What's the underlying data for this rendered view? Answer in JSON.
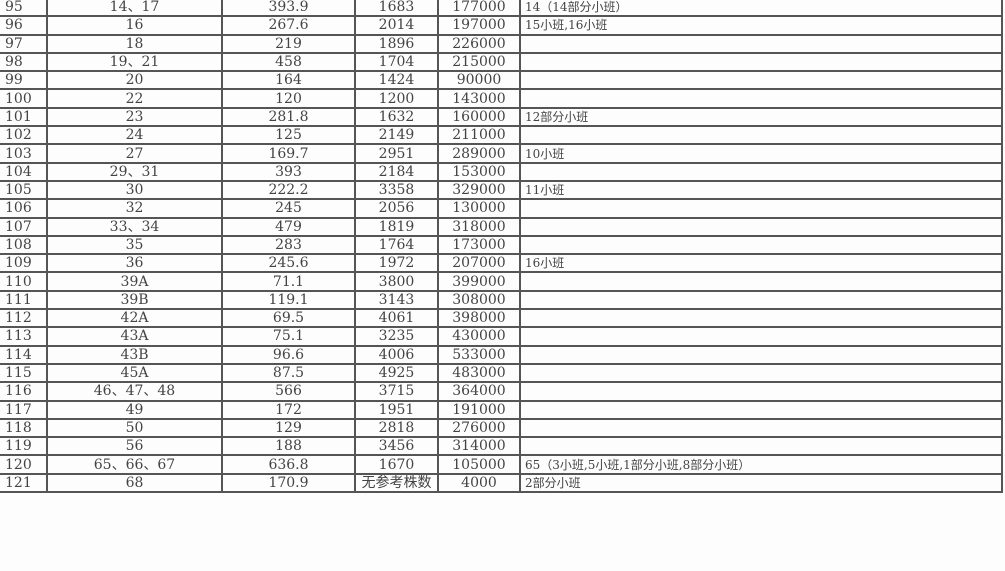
{
  "rows": [
    {
      "no": "95",
      "plots": "14、17",
      "area": "393.9",
      "count": "1683",
      "amount": "177000",
      "note": "14（14部分小班）"
    },
    {
      "no": "96",
      "plots": "16",
      "area": "267.6",
      "count": "2014",
      "amount": "197000",
      "note": "15小班,16小班"
    },
    {
      "no": "97",
      "plots": "18",
      "area": "219",
      "count": "1896",
      "amount": "226000",
      "note": ""
    },
    {
      "no": "98",
      "plots": "19、21",
      "area": "458",
      "count": "1704",
      "amount": "215000",
      "note": ""
    },
    {
      "no": "99",
      "plots": "20",
      "area": "164",
      "count": "1424",
      "amount": "90000",
      "note": ""
    },
    {
      "no": "100",
      "plots": "22",
      "area": "120",
      "count": "1200",
      "amount": "143000",
      "note": ""
    },
    {
      "no": "101",
      "plots": "23",
      "area": "281.8",
      "count": "1632",
      "amount": "160000",
      "note": "12部分小班"
    },
    {
      "no": "102",
      "plots": "24",
      "area": "125",
      "count": "2149",
      "amount": "211000",
      "note": ""
    },
    {
      "no": "103",
      "plots": "27",
      "area": "169.7",
      "count": "2951",
      "amount": "289000",
      "note": "10小班"
    },
    {
      "no": "104",
      "plots": "29、31",
      "area": "393",
      "count": "2184",
      "amount": "153000",
      "note": ""
    },
    {
      "no": "105",
      "plots": "30",
      "area": "222.2",
      "count": "3358",
      "amount": "329000",
      "note": "11小班"
    },
    {
      "no": "106",
      "plots": "32",
      "area": "245",
      "count": "2056",
      "amount": "130000",
      "note": ""
    },
    {
      "no": "107",
      "plots": "33、34",
      "area": "479",
      "count": "1819",
      "amount": "318000",
      "note": ""
    },
    {
      "no": "108",
      "plots": "35",
      "area": "283",
      "count": "1764",
      "amount": "173000",
      "note": ""
    },
    {
      "no": "109",
      "plots": "36",
      "area": "245.6",
      "count": "1972",
      "amount": "207000",
      "note": "16小班"
    },
    {
      "no": "110",
      "plots": "39A",
      "area": "71.1",
      "count": "3800",
      "amount": "399000",
      "note": ""
    },
    {
      "no": "111",
      "plots": "39B",
      "area": "119.1",
      "count": "3143",
      "amount": "308000",
      "note": ""
    },
    {
      "no": "112",
      "plots": "42A",
      "area": "69.5",
      "count": "4061",
      "amount": "398000",
      "note": ""
    },
    {
      "no": "113",
      "plots": "43A",
      "area": "75.1",
      "count": "3235",
      "amount": "430000",
      "note": ""
    },
    {
      "no": "114",
      "plots": "43B",
      "area": "96.6",
      "count": "4006",
      "amount": "533000",
      "note": ""
    },
    {
      "no": "115",
      "plots": "45A",
      "area": "87.5",
      "count": "4925",
      "amount": "483000",
      "note": ""
    },
    {
      "no": "116",
      "plots": "46、47、48",
      "area": "566",
      "count": "3715",
      "amount": "364000",
      "note": ""
    },
    {
      "no": "117",
      "plots": "49",
      "area": "172",
      "count": "1951",
      "amount": "191000",
      "note": ""
    },
    {
      "no": "118",
      "plots": "50",
      "area": "129",
      "count": "2818",
      "amount": "276000",
      "note": ""
    },
    {
      "no": "119",
      "plots": "56",
      "area": "188",
      "count": "3456",
      "amount": "314000",
      "note": ""
    },
    {
      "no": "120",
      "plots": "65、66、67",
      "area": "636.8",
      "count": "1670",
      "amount": "105000",
      "note": "65（3小班,5小班,1部分小班,8部分小班）"
    },
    {
      "no": "121",
      "plots": "68",
      "area": "170.9",
      "count": "无参考株数",
      "amount": "4000",
      "note": "2部分小班"
    }
  ]
}
